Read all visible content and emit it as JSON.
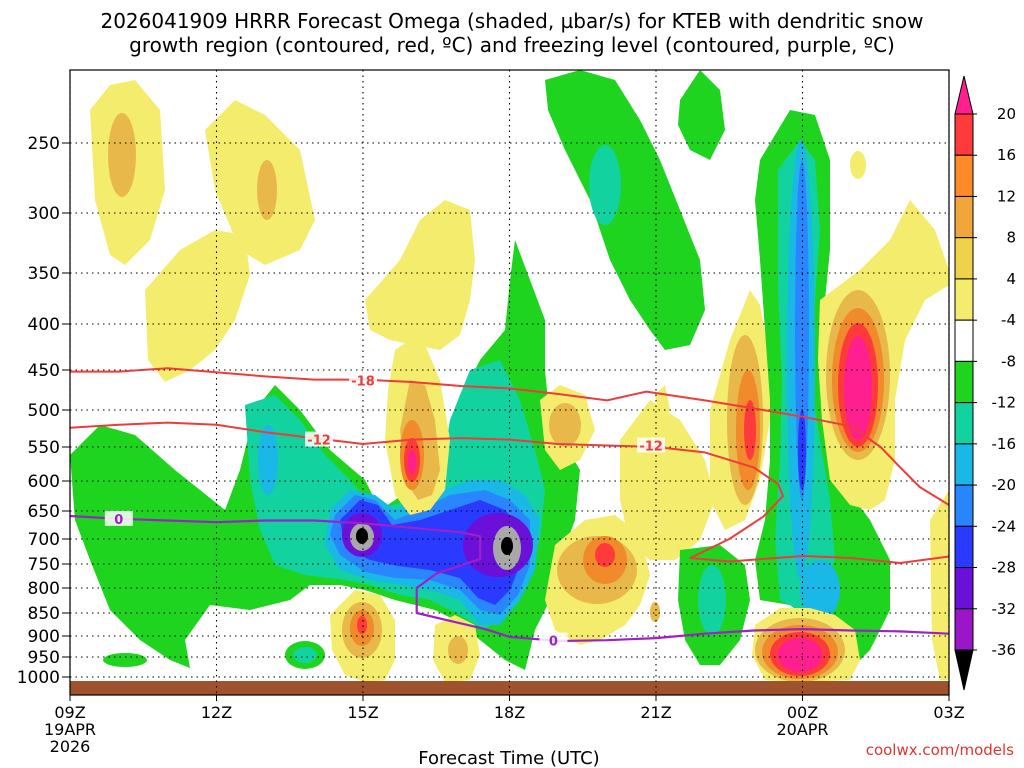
{
  "title": {
    "line1": "2026041909 HRRR Forecast Omega (shaded, µbar/s) for KTEB with dendritic snow",
    "line2": "growth region (contoured, red, ºC) and freezing level (contoured, purple, ºC)"
  },
  "credit": "coolwx.com/models",
  "chart_data": {
    "type": "time-height contour",
    "xlabel": "Forecast Time (UTC)",
    "ylabel": "",
    "x_ticks": [
      {
        "hour": 0,
        "label": "09Z",
        "sub1": "19APR",
        "sub2": "2026"
      },
      {
        "hour": 3,
        "label": "12Z"
      },
      {
        "hour": 6,
        "label": "15Z"
      },
      {
        "hour": 9,
        "label": "18Z"
      },
      {
        "hour": 12,
        "label": "21Z"
      },
      {
        "hour": 15,
        "label": "00Z",
        "sub1": "20APR"
      },
      {
        "hour": 18,
        "label": "03Z"
      }
    ],
    "xlim": [
      0,
      18
    ],
    "y_ticks": [
      250,
      300,
      350,
      400,
      450,
      500,
      550,
      600,
      650,
      700,
      750,
      800,
      850,
      900,
      950,
      1000
    ],
    "ylim": [
      200,
      1020
    ],
    "grid": true,
    "colorbar": {
      "labels": [
        "20",
        "16",
        "12",
        "8",
        "4",
        "-4",
        "-8",
        "-12",
        "-16",
        "-20",
        "-24",
        "-28",
        "-32",
        "-36"
      ],
      "colors": [
        "#ff1f8e",
        "#ff3a3a",
        "#ff8a2a",
        "#f0a63a",
        "#eed24a",
        "#f4ec6c",
        "#ffffff",
        "#1ed41e",
        "#12d3a0",
        "#1ab8e6",
        "#2a86ff",
        "#2a3aff",
        "#6a10d8",
        "#9a16c8",
        "#a8a8a8",
        "#000000"
      ]
    },
    "omega_colors": {
      "yellow": "#f4ec6c",
      "gold": "#e8b84a",
      "orange": "#f08a2a",
      "red": "#ff3a3a",
      "magenta": "#ff1f8e",
      "green": "#1ed41e",
      "teal": "#12d3a0",
      "cyan": "#1ab8e6",
      "blue": "#2a86ff",
      "navy": "#2a3aff",
      "purple": "#6a10d8",
      "violet": "#9a16c8",
      "gray": "#a8a8a8",
      "black": "#000000"
    },
    "terrain_color": "#a0522d",
    "dgz_contours": [
      {
        "level": -18,
        "label": "-18",
        "color": "#ee3b3b",
        "points": [
          [
            0,
            452
          ],
          [
            1,
            452
          ],
          [
            2,
            448
          ],
          [
            4,
            458
          ],
          [
            5,
            462
          ],
          [
            6,
            462
          ],
          [
            7,
            465
          ],
          [
            8,
            470
          ],
          [
            9,
            473
          ],
          [
            10,
            480
          ],
          [
            11,
            488
          ],
          [
            11.8,
            477
          ],
          [
            13,
            488
          ],
          [
            14,
            498
          ],
          [
            15,
            509
          ],
          [
            16,
            522
          ],
          [
            16.6,
            550
          ],
          [
            17,
            580
          ],
          [
            17.4,
            610
          ],
          [
            18,
            640
          ]
        ]
      },
      {
        "level": -12,
        "label": "-12",
        "color": "#ee3b3b",
        "points": [
          [
            0,
            524
          ],
          [
            1,
            520
          ],
          [
            2,
            517
          ],
          [
            3,
            520
          ],
          [
            4,
            530
          ],
          [
            5,
            538
          ],
          [
            6,
            546
          ],
          [
            7,
            540
          ],
          [
            8,
            538
          ],
          [
            9,
            540
          ],
          [
            10,
            546
          ],
          [
            11,
            548
          ],
          [
            12,
            550
          ],
          [
            13,
            558
          ],
          [
            14,
            580
          ],
          [
            14.5,
            605
          ],
          [
            14.6,
            625
          ],
          [
            14.2,
            660
          ],
          [
            13.5,
            700
          ],
          [
            12.7,
            738
          ],
          [
            13.5,
            745
          ],
          [
            15,
            734
          ],
          [
            16,
            738
          ],
          [
            17,
            748
          ],
          [
            18,
            735
          ]
        ]
      }
    ],
    "freezing_level": {
      "level": 0,
      "label": "0",
      "color": "#a020c8",
      "points": [
        [
          0,
          659
        ],
        [
          1,
          664
        ],
        [
          2,
          667
        ],
        [
          3,
          670
        ],
        [
          4,
          667
        ],
        [
          5,
          667
        ],
        [
          6,
          672
        ],
        [
          7,
          680
        ],
        [
          8,
          688
        ],
        [
          8.4,
          695
        ],
        [
          8.4,
          740
        ],
        [
          7.5,
          770
        ],
        [
          7.1,
          800
        ],
        [
          7.1,
          850
        ],
        [
          7.7,
          865
        ],
        [
          8.5,
          885
        ],
        [
          9,
          902
        ],
        [
          10,
          912
        ],
        [
          11,
          910
        ],
        [
          12,
          905
        ],
        [
          13,
          895
        ],
        [
          14,
          888
        ],
        [
          15,
          885
        ],
        [
          16,
          888
        ],
        [
          17,
          890
        ],
        [
          18,
          895
        ]
      ]
    }
  }
}
